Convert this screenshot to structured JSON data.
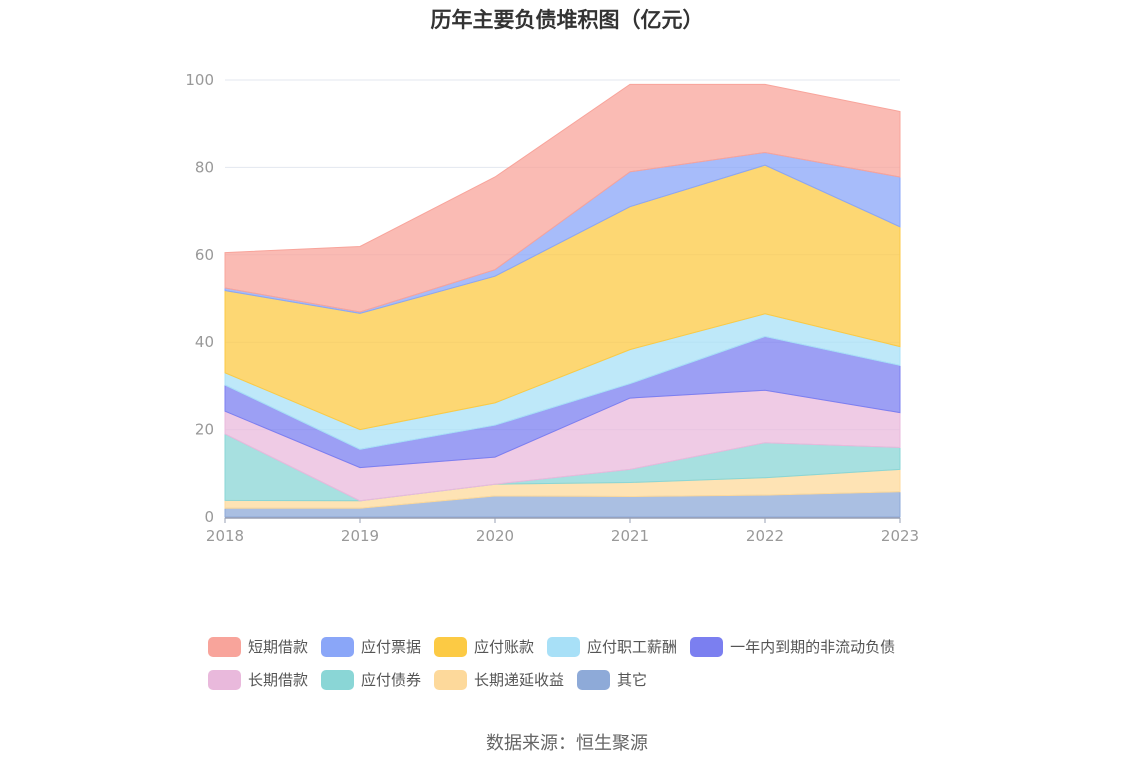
{
  "chart_data": {
    "type": "area",
    "stacked": true,
    "title": "历年主要负债堆积图（亿元）",
    "xlabel": "",
    "ylabel": "",
    "categories": [
      "2018",
      "2019",
      "2020",
      "2021",
      "2022",
      "2023"
    ],
    "ylim": [
      0,
      100
    ],
    "yticks": [
      "0",
      "20",
      "40",
      "60",
      "80",
      "100"
    ],
    "grid": true,
    "legend_position": "bottom",
    "series": [
      {
        "name": "其它",
        "color": "#8eaad8",
        "values": [
          2.0,
          2.0,
          4.8,
          4.7,
          5.0,
          5.8
        ]
      },
      {
        "name": "长期递延收益",
        "color": "#fdd99b",
        "values": [
          1.8,
          1.7,
          2.7,
          3.2,
          4.0,
          5.1
        ]
      },
      {
        "name": "应付债券",
        "color": "#8ad6d6",
        "values": [
          15.2,
          0.0,
          0.0,
          3.0,
          8.0,
          5.0
        ]
      },
      {
        "name": "长期借款",
        "color": "#e9b9dc",
        "values": [
          5.2,
          7.6,
          6.2,
          16.3,
          12.0,
          8.0
        ]
      },
      {
        "name": "一年内到期的非流动负债",
        "color": "#7b7ff0",
        "values": [
          6.0,
          4.2,
          7.3,
          3.3,
          12.3,
          10.8
        ]
      },
      {
        "name": "应付职工薪酬",
        "color": "#a8e0f7",
        "values": [
          2.8,
          4.5,
          5.1,
          7.8,
          5.2,
          4.3
        ]
      },
      {
        "name": "应付账款",
        "color": "#fcca44",
        "values": [
          18.8,
          26.6,
          29.0,
          32.7,
          34.0,
          27.4
        ]
      },
      {
        "name": "应付票据",
        "color": "#8aa6f8",
        "values": [
          0.6,
          0.3,
          1.5,
          8.0,
          2.9,
          11.4
        ]
      },
      {
        "name": "短期借款",
        "color": "#f8a49b",
        "values": [
          8.1,
          15.0,
          21.2,
          20.0,
          15.6,
          15.0
        ]
      }
    ]
  },
  "legend": {
    "row1": [
      {
        "label": "短期借款",
        "color": "#f8a49b"
      },
      {
        "label": "应付票据",
        "color": "#8aa6f8"
      },
      {
        "label": "应付账款",
        "color": "#fcca44"
      },
      {
        "label": "应付职工薪酬",
        "color": "#a8e0f7"
      },
      {
        "label": "一年内到期的非流动负债",
        "color": "#7b7ff0"
      }
    ],
    "row2": [
      {
        "label": "长期借款",
        "color": "#e9b9dc"
      },
      {
        "label": "应付债券",
        "color": "#8ad6d6"
      },
      {
        "label": "长期递延收益",
        "color": "#fdd99b"
      },
      {
        "label": "其它",
        "color": "#8eaad8"
      }
    ]
  },
  "source": "数据来源：恒生聚源"
}
